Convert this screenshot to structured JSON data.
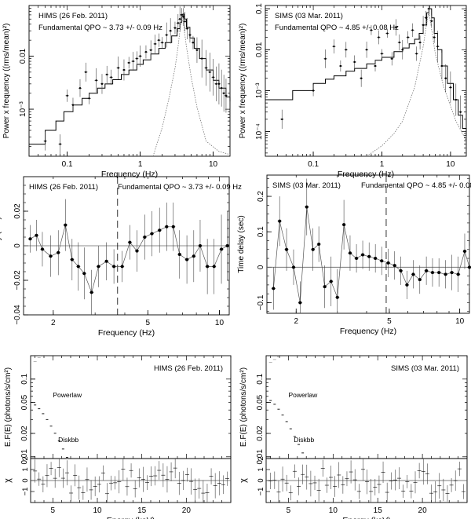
{
  "chart_data": [
    {
      "id": "psd_hims",
      "type": "line",
      "title": "HIMS (26 Feb. 2011)",
      "annotation": "Fundamental QPO ~ 3.73 +/- 0.09 Hz",
      "xlabel": "Frequency (Hz)",
      "ylabel": "Power x frequency ((rms/mean)²)",
      "xscale": "log",
      "yscale": "log",
      "xlim": [
        0.03,
        17
      ],
      "ylim": [
        0.00013,
        0.09
      ],
      "xticks": [
        {
          "v": 0.1,
          "label": "0.1"
        },
        {
          "v": 1,
          "label": "1"
        },
        {
          "v": 10,
          "label": "10"
        }
      ],
      "yticks": [
        {
          "v": 0.001,
          "label": "10⁻³"
        },
        {
          "v": 0.01,
          "label": "0.01"
        }
      ],
      "series": [
        {
          "name": "model",
          "style": "step",
          "x": [
            0.03,
            0.04,
            0.05,
            0.07,
            0.09,
            0.12,
            0.16,
            0.2,
            0.26,
            0.33,
            0.42,
            0.55,
            0.7,
            0.9,
            1.1,
            1.4,
            1.8,
            2.2,
            2.7,
            3.2,
            3.5,
            3.7,
            3.85,
            4.0,
            4.3,
            4.8,
            5.5,
            6.5,
            8,
            10,
            12,
            15,
            17
          ],
          "y": [
            0.00022,
            0.00022,
            0.0004,
            0.0006,
            0.0009,
            0.0012,
            0.0016,
            0.002,
            0.0025,
            0.003,
            0.0036,
            0.0045,
            0.0055,
            0.007,
            0.0085,
            0.011,
            0.014,
            0.018,
            0.024,
            0.033,
            0.043,
            0.055,
            0.062,
            0.05,
            0.035,
            0.022,
            0.014,
            0.009,
            0.0055,
            0.0035,
            0.0025,
            0.0017,
            0.0014
          ]
        },
        {
          "name": "QPO Lorentzian",
          "style": "dotted",
          "x": [
            1.5,
            2,
            2.5,
            3,
            3.3,
            3.5,
            3.65,
            3.73,
            3.85,
            4,
            4.3,
            5,
            6,
            8,
            12,
            17
          ],
          "y": [
            0.00013,
            0.00045,
            0.0017,
            0.006,
            0.015,
            0.03,
            0.046,
            0.052,
            0.045,
            0.032,
            0.015,
            0.004,
            0.0011,
            0.00025,
            0.00016,
            0.00014
          ]
        },
        {
          "name": "data",
          "style": "points",
          "x": [
            0.05,
            0.08,
            0.1,
            0.12,
            0.15,
            0.18,
            0.2,
            0.25,
            0.3,
            0.35,
            0.4,
            0.5,
            0.6,
            0.7,
            0.8,
            0.9,
            1.0,
            1.2,
            1.4,
            1.6,
            1.8,
            2.0,
            2.3,
            2.6,
            3.0,
            3.3,
            3.5,
            3.7,
            3.9,
            4.1,
            4.4,
            4.8,
            5.3,
            6,
            7,
            8,
            9,
            10,
            11,
            12,
            13,
            14,
            15
          ],
          "y": [
            0.00025,
            0.00022,
            0.0018,
            0.0012,
            0.0025,
            0.005,
            0.0016,
            0.0035,
            0.003,
            0.0045,
            0.004,
            0.006,
            0.0055,
            0.0075,
            0.008,
            0.009,
            0.01,
            0.012,
            0.013,
            0.017,
            0.02,
            0.018,
            0.025,
            0.03,
            0.034,
            0.042,
            0.05,
            0.06,
            0.055,
            0.045,
            0.033,
            0.025,
            0.018,
            0.013,
            0.009,
            0.006,
            0.005,
            0.004,
            0.003,
            0.003,
            0.0025,
            0.002,
            0.0018
          ]
        }
      ]
    },
    {
      "id": "psd_sims",
      "type": "line",
      "title": "SIMS (03 Mar. 2011)",
      "annotation": "Fundamental QPO ~ 4.85 +/- 0.08 Hz",
      "xlabel": "Frequency (Hz)",
      "ylabel": "Power x frequency ((rms/mean)²)",
      "xscale": "log",
      "yscale": "log",
      "xlim": [
        0.02,
        17
      ],
      "ylim": [
        2.5e-05,
        0.12
      ],
      "xticks": [
        {
          "v": 0.1,
          "label": "0.1"
        },
        {
          "v": 1,
          "label": "1"
        },
        {
          "v": 10,
          "label": "10"
        }
      ],
      "yticks": [
        {
          "v": 0.0001,
          "label": "10⁻⁴"
        },
        {
          "v": 0.001,
          "label": "10⁻³"
        },
        {
          "v": 0.01,
          "label": "0.01"
        },
        {
          "v": 0.1,
          "label": "0.1"
        }
      ],
      "series": [
        {
          "name": "model",
          "style": "step",
          "x": [
            0.02,
            0.05,
            0.05,
            0.1,
            0.15,
            0.2,
            0.3,
            0.4,
            0.6,
            0.8,
            1,
            1.5,
            2,
            2.5,
            3,
            3.5,
            4,
            4.5,
            4.85,
            5.3,
            5.8,
            6.5,
            7.5,
            9,
            11,
            13,
            15,
            17
          ],
          "y": [
            0.0006,
            0.0006,
            0.001,
            0.0015,
            0.0019,
            0.0023,
            0.003,
            0.0035,
            0.0045,
            0.0055,
            0.0065,
            0.009,
            0.011,
            0.014,
            0.018,
            0.025,
            0.04,
            0.08,
            0.1,
            0.06,
            0.025,
            0.01,
            0.004,
            0.0015,
            0.0006,
            0.00025,
            0.00012,
            8e-05
          ]
        },
        {
          "name": "QPO Lorentzian",
          "style": "dotted",
          "x": [
            0.6,
            1,
            1.5,
            2,
            3,
            4,
            4.5,
            4.85,
            5.2,
            6,
            8,
            12,
            17
          ],
          "y": [
            2.5e-05,
            4.5e-05,
            9e-05,
            0.00018,
            0.0012,
            0.012,
            0.045,
            0.085,
            0.04,
            0.008,
            0.0012,
            0.00018,
            6e-05
          ]
        },
        {
          "name": "data",
          "style": "points",
          "x": [
            0.035,
            0.1,
            0.15,
            0.2,
            0.25,
            0.3,
            0.4,
            0.5,
            0.6,
            0.7,
            0.8,
            0.9,
            1.0,
            1.2,
            1.4,
            1.6,
            1.8,
            2.0,
            2.4,
            2.8,
            3.2,
            3.6,
            4.0,
            4.4,
            4.85,
            5.3,
            5.8,
            6.5,
            7.5,
            8.5,
            10,
            12,
            14
          ],
          "y": [
            0.0002,
            0.001,
            0.006,
            0.012,
            0.004,
            0.01,
            0.005,
            0.002,
            0.01,
            0.03,
            0.004,
            0.02,
            0.008,
            0.025,
            0.006,
            0.035,
            0.015,
            0.01,
            0.02,
            0.03,
            0.008,
            0.015,
            0.04,
            0.06,
            0.1,
            0.05,
            0.02,
            0.012,
            0.004,
            0.002,
            0.0012,
            0.0006,
            0.0003
          ]
        }
      ]
    },
    {
      "id": "lag_hims",
      "type": "line",
      "title": "HIMS (26 Feb. 2011)",
      "annotation": "Fundamental QPO ~ 3.73 +/- 0.09 Hz",
      "xlabel": "Frequency (Hz)",
      "ylabel": "Time delay (sec)",
      "xscale": "log",
      "yscale": "linear",
      "xlim": [
        1.5,
        11
      ],
      "ylim": [
        -0.04,
        0.04
      ],
      "qpo_line": 3.73,
      "xticks": [
        {
          "v": 2,
          "label": "2"
        },
        {
          "v": 5,
          "label": "5"
        },
        {
          "v": 10,
          "label": "10"
        }
      ],
      "yticks": [
        {
          "v": -0.04,
          "label": "−0.04"
        },
        {
          "v": -0.02,
          "label": "−0.02"
        },
        {
          "v": 0,
          "label": "0"
        },
        {
          "v": 0.02,
          "label": "0.02"
        }
      ],
      "series": [
        {
          "name": "lag",
          "style": "points-line",
          "x": [
            1.6,
            1.7,
            1.8,
            1.95,
            2.1,
            2.25,
            2.4,
            2.55,
            2.7,
            2.9,
            3.1,
            3.35,
            3.6,
            3.9,
            4.2,
            4.5,
            4.85,
            5.2,
            5.6,
            6,
            6.4,
            6.8,
            7.3,
            7.8,
            8.3,
            8.9,
            9.5,
            10.2,
            10.8
          ],
          "y": [
            0.004,
            0.006,
            -0.002,
            -0.006,
            -0.004,
            0.012,
            -0.008,
            -0.012,
            -0.016,
            -0.027,
            -0.012,
            -0.009,
            -0.012,
            -0.012,
            0.002,
            -0.003,
            0.005,
            0.007,
            0.009,
            0.011,
            0.011,
            -0.005,
            -0.008,
            -0.006,
            0.0,
            -0.012,
            -0.012,
            -0.002,
            0.0
          ],
          "err": [
            0.008,
            0.009,
            0.01,
            0.012,
            0.013,
            0.015,
            0.012,
            0.014,
            0.015,
            0.013,
            0.012,
            0.011,
            0.01,
            0.009,
            0.01,
            0.012,
            0.013,
            0.013,
            0.013,
            0.014,
            0.014,
            0.014,
            0.014,
            0.015,
            0.015,
            0.016,
            0.016,
            0.02,
            0.02
          ]
        }
      ]
    },
    {
      "id": "lag_sims",
      "type": "line",
      "title": "SIMS (03 Mar. 2011)",
      "annotation": "Fundamental QPO ~ 4.85 +/- 0.08 Hz",
      "xlabel": "Frequency (Hz)",
      "ylabel": "Time delay (sec)",
      "xscale": "log",
      "yscale": "linear",
      "xlim": [
        1.5,
        11
      ],
      "ylim": [
        -0.13,
        0.26
      ],
      "qpo_line": 4.85,
      "xticks": [
        {
          "v": 2,
          "label": "2"
        },
        {
          "v": 5,
          "label": "5"
        },
        {
          "v": 10,
          "label": "10"
        }
      ],
      "yticks": [
        {
          "v": -0.1,
          "label": "−0.1"
        },
        {
          "v": 0,
          "label": "0"
        },
        {
          "v": 0.1,
          "label": "0.1"
        },
        {
          "v": 0.2,
          "label": "0.2"
        }
      ],
      "series": [
        {
          "name": "lag",
          "style": "points-line",
          "x": [
            1.6,
            1.7,
            1.82,
            1.95,
            2.08,
            2.22,
            2.36,
            2.5,
            2.65,
            2.82,
            3.0,
            3.2,
            3.4,
            3.62,
            3.85,
            4.1,
            4.36,
            4.64,
            4.95,
            5.27,
            5.6,
            5.95,
            6.33,
            6.75,
            7.2,
            7.65,
            8.15,
            8.7,
            9.25,
            9.85,
            10.5,
            11.0
          ],
          "y": [
            -0.06,
            0.13,
            0.05,
            0.0,
            -0.1,
            0.17,
            0.05,
            0.065,
            -0.055,
            -0.04,
            -0.085,
            0.12,
            0.04,
            0.025,
            0.035,
            0.03,
            0.025,
            0.018,
            0.012,
            0.005,
            -0.01,
            -0.05,
            -0.02,
            -0.035,
            -0.01,
            -0.015,
            -0.015,
            -0.02,
            -0.015,
            -0.02,
            0.045,
            0.0
          ],
          "err": [
            0.06,
            0.07,
            0.06,
            0.05,
            0.06,
            0.08,
            0.06,
            0.05,
            0.06,
            0.07,
            0.08,
            0.07,
            0.05,
            0.04,
            0.04,
            0.04,
            0.04,
            0.04,
            0.04,
            0.04,
            0.04,
            0.04,
            0.04,
            0.04,
            0.04,
            0.04,
            0.04,
            0.04,
            0.05,
            0.05,
            0.05,
            0.06
          ]
        }
      ]
    },
    {
      "id": "spec_hims",
      "type": "scatter",
      "title": "HIMS (26 Feb. 2011)",
      "xlabel": "Energy (keV)",
      "ylabel": "E.F(E) (photons/s/cm²)",
      "resid_label": "χ",
      "xscale": "linear",
      "yscale": "log",
      "xlim": [
        2.5,
        25
      ],
      "ylim": [
        0.0095,
        0.2
      ],
      "xticks": [
        {
          "v": 5,
          "label": "5"
        },
        {
          "v": 10,
          "label": "10"
        },
        {
          "v": 15,
          "label": "15"
        },
        {
          "v": 20,
          "label": "20"
        }
      ],
      "yticks": [
        {
          "v": 0.01,
          "label": "0.01"
        },
        {
          "v": 0.02,
          "label": "0.02"
        },
        {
          "v": 0.05,
          "label": "0.05"
        },
        {
          "v": 0.1,
          "label": "0.1"
        }
      ],
      "resid_ticks": [
        {
          "v": -1,
          "label": "−1"
        },
        {
          "v": 0,
          "label": "0"
        },
        {
          "v": 1,
          "label": "1"
        },
        {
          "v": 2,
          "label": "2"
        }
      ],
      "resid_ylim": [
        -2,
        2
      ],
      "labels": [
        {
          "text": "Powerlaw",
          "at": [
            5.0,
            0.058
          ]
        },
        {
          "text": "Diskbb",
          "at": [
            5.6,
            0.0155
          ]
        }
      ],
      "series": [
        {
          "name": "total",
          "amp": 1.21,
          "index": 1.49,
          "disk_amp": 0.11,
          "disk_scale": 1.05
        },
        {
          "name": "Powerlaw",
          "amp": 0.76,
          "index": 1.2
        },
        {
          "name": "Diskbb",
          "amp": 0.28,
          "scale": 1.15
        }
      ]
    },
    {
      "id": "spec_sims",
      "type": "scatter",
      "title": "SIMS (03 Mar. 2011)",
      "xlabel": "Energy (keV)",
      "ylabel": "E.F(E) (photons/s/cm²)",
      "resid_label": "χ",
      "xscale": "linear",
      "yscale": "log",
      "xlim": [
        2.5,
        25
      ],
      "ylim": [
        0.0095,
        0.2
      ],
      "xticks": [
        {
          "v": 5,
          "label": "5"
        },
        {
          "v": 10,
          "label": "10"
        },
        {
          "v": 15,
          "label": "15"
        },
        {
          "v": 20,
          "label": "20"
        }
      ],
      "yticks": [
        {
          "v": 0.01,
          "label": "0.01"
        },
        {
          "v": 0.02,
          "label": "0.02"
        },
        {
          "v": 0.05,
          "label": "0.05"
        },
        {
          "v": 0.1,
          "label": "0.1"
        }
      ],
      "resid_ticks": [
        {
          "v": -1,
          "label": "−1"
        },
        {
          "v": 0,
          "label": "0"
        },
        {
          "v": 1,
          "label": "1"
        },
        {
          "v": 2,
          "label": "2"
        }
      ],
      "resid_ylim": [
        -2,
        2
      ],
      "labels": [
        {
          "text": "Powerlaw",
          "at": [
            5.0,
            0.058
          ]
        },
        {
          "text": "Diskbb",
          "at": [
            5.6,
            0.0155
          ]
        }
      ],
      "series": [
        {
          "name": "total",
          "amp": 1.32,
          "index": 1.68,
          "disk_amp": 0.14,
          "disk_scale": 1.05
        },
        {
          "name": "Powerlaw",
          "amp": 0.9,
          "index": 1.38
        },
        {
          "name": "Diskbb",
          "amp": 0.32,
          "scale": 1.15
        }
      ]
    }
  ]
}
